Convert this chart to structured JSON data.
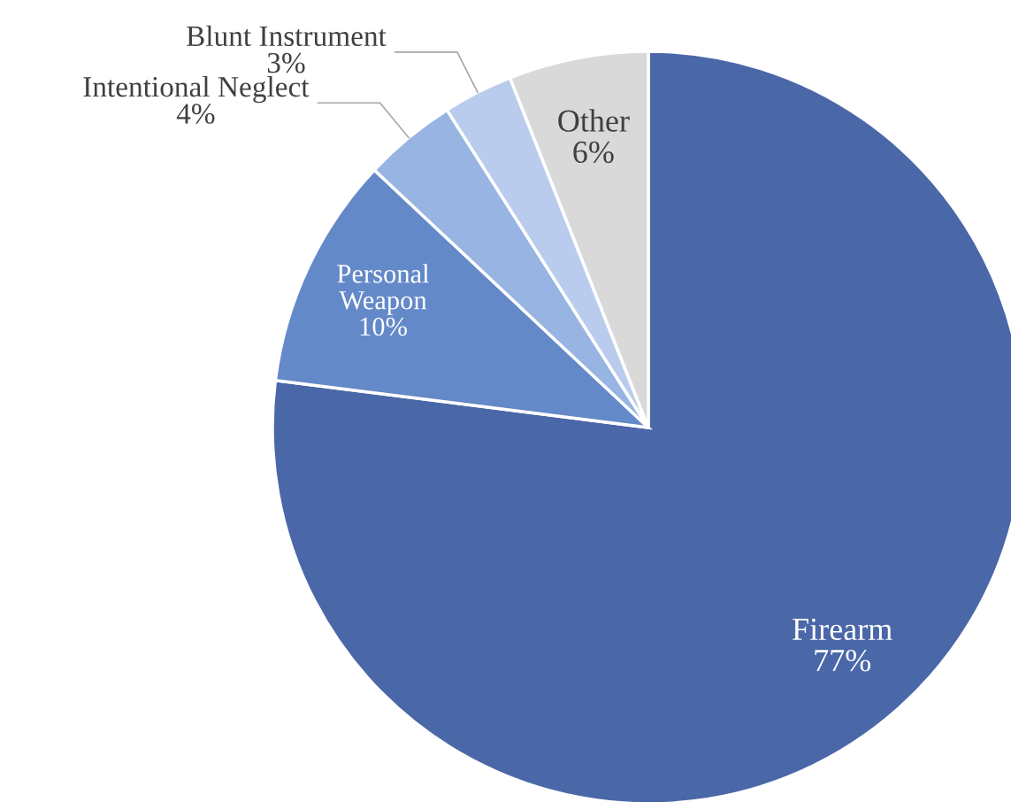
{
  "chart_data": {
    "type": "pie",
    "categories": [
      "Firearm",
      "Personal Weapon",
      "Intentional Neglect",
      "Blunt Instrument",
      "Other"
    ],
    "values": [
      77,
      10,
      4,
      3,
      6
    ],
    "value_labels": [
      "77%",
      "10%",
      "4%",
      "3%",
      "6%"
    ],
    "colors": [
      "#4a67a8",
      "#6489c9",
      "#97b4e2",
      "#b9cced",
      "#d9d9d9"
    ],
    "legend": false
  }
}
